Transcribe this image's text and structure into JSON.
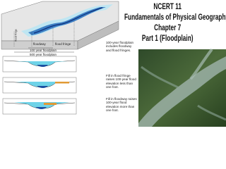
{
  "title_lines": [
    "NCERT 11",
    "Fundamentals of Physical Geography",
    "Chapter 7",
    "Part 1 (Floodplain)"
  ],
  "diagram": {
    "labels": {
      "flood_fringe_small": "flood fringe",
      "floodway": "floodway",
      "flood_fringe": "flood fringe",
      "floodplain_100": "100 year floodplain",
      "floodplain_500": "500 year floodplain"
    },
    "captions": [
      "100-year floodplain includes floodway and flood fringes.",
      "Fill in flood fringe raises 100-year flood elevation less than one foot.",
      "Fill in floodway raises 100-year flood elevation more than one foot."
    ]
  }
}
